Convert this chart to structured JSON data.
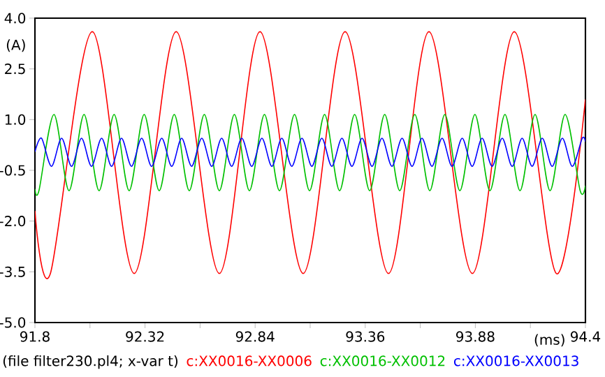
{
  "chart_data": {
    "type": "line",
    "ylabel": "(A)",
    "xlabel": "(ms)",
    "annotations": [
      "(file filter230.pl4; x-var t)"
    ],
    "legend": "bottom",
    "grid": false,
    "marker": "none",
    "line_style": "solid",
    "xlim": [
      91.8,
      94.4
    ],
    "ylim": [
      -5.0,
      4.0
    ],
    "xticks": [
      91.8,
      {
        "value": 92.06,
        "label": null
      },
      92.32,
      {
        "value": 92.58,
        "label": null
      },
      92.84,
      {
        "value": 93.1,
        "label": null
      },
      93.36,
      {
        "value": 93.62,
        "label": null
      },
      93.88,
      {
        "value": 94.14,
        "label": null
      },
      94.4
    ],
    "yticks": [
      {
        "value": 4,
        "label": "4.0"
      },
      2.5,
      {
        "value": 1,
        "label": "1.0"
      },
      -0.5,
      {
        "value": -2,
        "label": "-2.0"
      },
      -3.5,
      {
        "value": -5,
        "label": "-5.0"
      }
    ],
    "series": [
      {
        "name": "c:XX0016-XX0006",
        "color": "#ff0000",
        "x": [
          91.8,
          91.873,
          92.071,
          92.269,
          92.467,
          92.671,
          92.863,
          93.067,
          93.265,
          93.47,
          93.661,
          93.866,
          94.064,
          94.262,
          94.4
        ],
        "values": [
          -1.7,
          -3.55,
          3.6,
          -3.55,
          3.6,
          -3.55,
          3.6,
          -3.55,
          3.6,
          -3.55,
          3.6,
          -3.55,
          3.6,
          -3.55,
          1.6
        ]
      },
      {
        "name": "c:XX0016-XX0012",
        "color": "#00c000",
        "x": [
          91.8,
          91.819,
          91.89,
          91.961,
          92.032,
          92.103,
          92.174,
          92.245,
          92.316,
          92.387,
          92.458,
          92.529,
          92.6,
          92.671,
          92.742,
          92.813,
          92.884,
          92.955,
          93.026,
          93.097,
          93.168,
          93.239,
          93.31,
          93.381,
          93.452,
          93.523,
          93.594,
          93.665,
          93.736,
          93.807,
          93.878,
          93.949,
          94.02,
          94.091,
          94.162,
          94.233,
          94.304,
          94.375,
          94.4
        ],
        "values": [
          -1.05,
          -1.1,
          1.15,
          -1.1,
          1.15,
          -1.1,
          1.15,
          -1.1,
          1.15,
          -1.1,
          1.15,
          -1.1,
          1.15,
          -1.1,
          1.15,
          -1.1,
          1.15,
          -1.1,
          1.15,
          -1.1,
          1.15,
          -1.1,
          1.15,
          -1.1,
          1.15,
          -1.1,
          1.15,
          -1.1,
          1.15,
          -1.1,
          1.15,
          -1.1,
          1.15,
          -1.1,
          1.15,
          -1.1,
          1.15,
          -1.1,
          -0.95
        ]
      },
      {
        "name": "c:XX0016-XX0013",
        "color": "#0000ff",
        "x": [
          91.8,
          91.831,
          91.878,
          91.926,
          91.973,
          92.02,
          92.067,
          92.115,
          92.162,
          92.209,
          92.256,
          92.304,
          92.351,
          92.399,
          92.446,
          92.493,
          92.54,
          92.588,
          92.635,
          92.682,
          92.729,
          92.777,
          92.824,
          92.872,
          92.919,
          92.966,
          93.013,
          93.061,
          93.108,
          93.155,
          93.202,
          93.25,
          93.297,
          93.345,
          93.392,
          93.439,
          93.486,
          93.534,
          93.581,
          93.628,
          93.675,
          93.723,
          93.77,
          93.818,
          93.865,
          93.912,
          93.959,
          94.007,
          94.054,
          94.101,
          94.148,
          94.196,
          94.243,
          94.291,
          94.338,
          94.385,
          94.4
        ],
        "values": [
          0.05,
          0.45,
          -0.38,
          0.45,
          -0.38,
          0.45,
          -0.38,
          0.45,
          -0.38,
          0.45,
          -0.38,
          0.45,
          -0.38,
          0.45,
          -0.38,
          0.45,
          -0.38,
          0.45,
          -0.38,
          0.45,
          -0.38,
          0.45,
          -0.38,
          0.45,
          -0.38,
          0.45,
          -0.38,
          0.45,
          -0.38,
          0.45,
          -0.38,
          0.45,
          -0.38,
          0.45,
          -0.38,
          0.45,
          -0.38,
          0.45,
          -0.38,
          0.45,
          -0.38,
          0.45,
          -0.38,
          0.45,
          -0.38,
          0.45,
          -0.38,
          0.45,
          -0.38,
          0.45,
          -0.38,
          0.45,
          -0.38,
          0.45,
          -0.38,
          0.45,
          0.35
        ]
      }
    ]
  }
}
